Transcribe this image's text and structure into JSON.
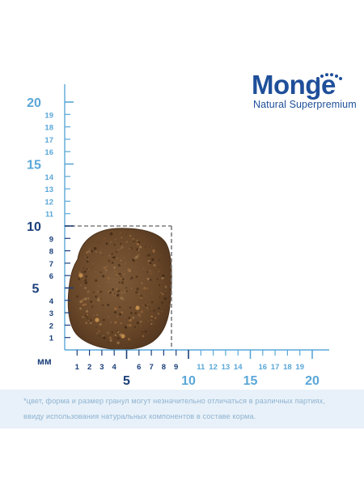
{
  "brand": {
    "wordmark": "Monge",
    "tagline": "Natural Superpremium"
  },
  "ruler": {
    "unit_label": "мм",
    "y_major_labels": [
      "20",
      "15",
      "10",
      "5"
    ],
    "y_minor_labels": [
      "19",
      "18",
      "17",
      "16",
      "14",
      "13",
      "12",
      "11",
      "9",
      "8",
      "7",
      "6",
      "4",
      "3",
      "2",
      "1"
    ],
    "x_major_labels": [
      "5",
      "10",
      "15",
      "20"
    ],
    "x_minor_labels": [
      "1",
      "2",
      "3",
      "4",
      "6",
      "7",
      "8",
      "9",
      "11",
      "12",
      "13",
      "14",
      "16",
      "17",
      "18",
      "19"
    ],
    "max_value": 20
  },
  "kibble": {
    "bounding_box_mm": 10
  },
  "colors": {
    "brand_blue": "#1f4f9a",
    "dark_navy": "#1b3f7a",
    "light_blue": "#5aa7d8",
    "note_background": "#e8f1f9",
    "note_text": "#8fb3d2",
    "kibble_brown": "#6b4a2c"
  },
  "note": {
    "line1": "*цвет, форма и размер гранул могут незначительно отличаться в различных партиях,",
    "line2": "ввиду использования натуральных компонентов в составе корма."
  }
}
